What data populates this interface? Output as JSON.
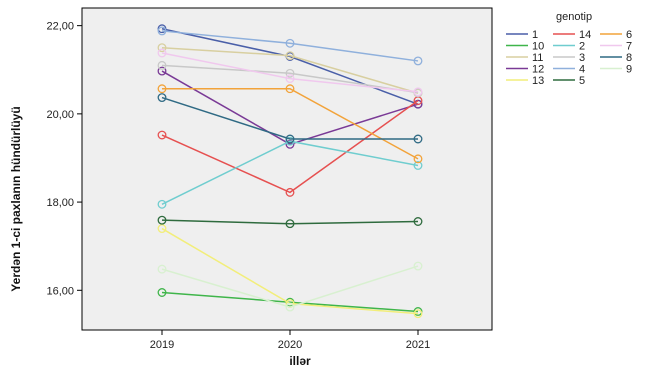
{
  "chart_data": {
    "type": "line",
    "xlabel": "illər",
    "ylabel": "Yerdən 1-ci paxlanın hündürlüyü",
    "x": [
      "2019",
      "2020",
      "2021"
    ],
    "ylim": [
      15.1,
      22.4
    ],
    "yticks": [
      "16,00",
      "18,00",
      "20,00",
      "22,00"
    ],
    "ytick_values": [
      16,
      18,
      20,
      22
    ],
    "grid": false,
    "plot_background": "#efefef",
    "legend": {
      "title": "genotip",
      "placement": "top-right",
      "columns": 3
    },
    "series": [
      {
        "name": "1",
        "color": "#4a5fa8",
        "values": [
          21.93,
          21.3,
          20.22
        ]
      },
      {
        "name": "10",
        "color": "#3fb54a",
        "values": [
          15.95,
          15.73,
          15.52
        ]
      },
      {
        "name": "11",
        "color": "#d8cfa0",
        "values": [
          21.5,
          21.32,
          20.47
        ]
      },
      {
        "name": "12",
        "color": "#7a3a96",
        "values": [
          20.97,
          19.31,
          20.22
        ]
      },
      {
        "name": "13",
        "color": "#f2ee7a",
        "values": [
          17.4,
          15.7,
          15.47
        ]
      },
      {
        "name": "14",
        "color": "#e65050",
        "values": [
          19.52,
          18.22,
          20.3
        ]
      },
      {
        "name": "2",
        "color": "#6fcdcf",
        "values": [
          17.95,
          19.38,
          18.83
        ]
      },
      {
        "name": "3",
        "color": "#c8c8c8",
        "values": [
          21.1,
          20.92,
          20.48
        ]
      },
      {
        "name": "4",
        "color": "#8fb0dc",
        "values": [
          21.88,
          21.6,
          21.2
        ]
      },
      {
        "name": "5",
        "color": "#2f6b3e",
        "values": [
          17.59,
          17.51,
          17.56
        ]
      },
      {
        "name": "6",
        "color": "#f2a33a",
        "values": [
          20.57,
          20.57,
          18.98
        ]
      },
      {
        "name": "7",
        "color": "#f0c8ee",
        "values": [
          21.38,
          20.8,
          20.5
        ]
      },
      {
        "name": "8",
        "color": "#2f6a84",
        "values": [
          20.37,
          19.43,
          19.43
        ]
      },
      {
        "name": "9",
        "color": "#d8f0d0",
        "values": [
          16.48,
          15.62,
          16.55
        ]
      }
    ],
    "legend_order": [
      "1",
      "14",
      "6",
      "10",
      "2",
      "7",
      "11",
      "3",
      "8",
      "12",
      "4",
      "9",
      "13",
      "5"
    ]
  }
}
